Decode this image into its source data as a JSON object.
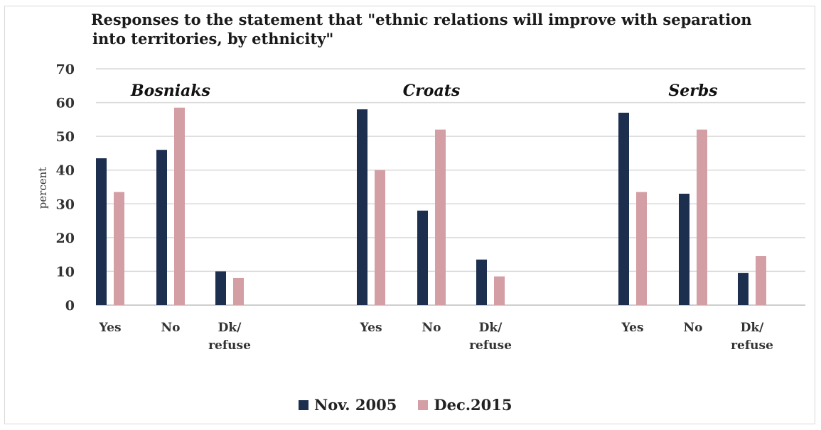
{
  "chart_data": {
    "type": "bar",
    "title": "Responses to the statement that \"ethnic relations will improve with separation",
    "title_line2": "into territories, by ethnicity\"",
    "ylabel": "percent",
    "ylim": [
      0,
      70
    ],
    "yticks": [
      0,
      10,
      20,
      30,
      40,
      50,
      60,
      70
    ],
    "grid": true,
    "legend_position": "bottom",
    "groups": [
      {
        "name": "Bosniaks",
        "categories": [
          "Yes",
          "No",
          "Dk/\nrefuse"
        ],
        "values_2005": [
          43.5,
          46,
          10
        ],
        "values_2015": [
          33.5,
          58.5,
          8
        ]
      },
      {
        "name": "Croats",
        "categories": [
          "Yes",
          "No",
          "Dk/\nrefuse"
        ],
        "values_2005": [
          58,
          28,
          13.5
        ],
        "values_2015": [
          40,
          52,
          8.5
        ]
      },
      {
        "name": "Serbs",
        "categories": [
          "Yes",
          "No",
          "Dk/\nrefuse"
        ],
        "values_2005": [
          57,
          33,
          9.5
        ],
        "values_2015": [
          33.5,
          52,
          14.5
        ]
      }
    ],
    "series": [
      {
        "name": "Nov. 2005",
        "color": "#1c2f4f"
      },
      {
        "name": "Dec.2015",
        "color": "#d39ea4"
      }
    ]
  }
}
